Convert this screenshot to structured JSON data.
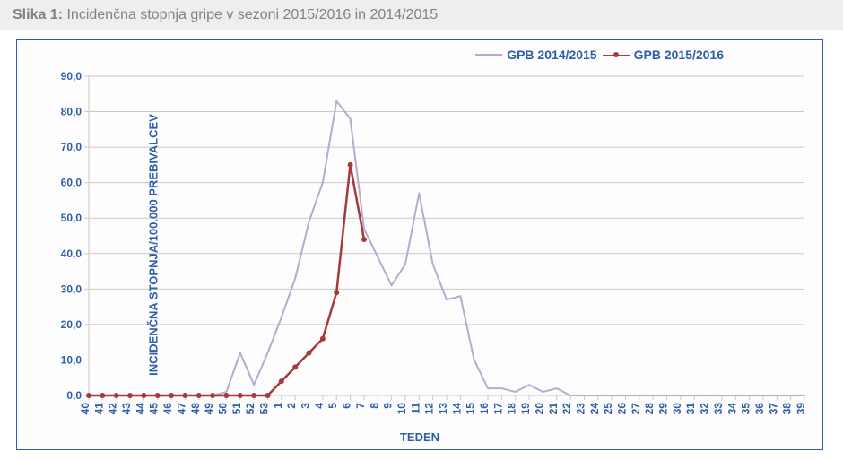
{
  "title_prefix": "Slika 1: ",
  "title_rest": "Incidenčna stopnja gripe v sezoni 2015/2016 in 2014/2015",
  "chart": {
    "type": "line",
    "background_color": "#fdfdfd",
    "border_color": "#2d5ea9",
    "grid_color": "#c8c8c8",
    "text_color": "#2d5ea9",
    "ylabel": "INCIDENČNA STOPNJA/100.000 PREBIVALCEV",
    "xlabel": "TEDEN",
    "label_fontsize": 13,
    "tick_fontsize": 12,
    "ylim": [
      0,
      90
    ],
    "ytick_step": 10,
    "categories": [
      "40",
      "41",
      "42",
      "43",
      "44",
      "45",
      "46",
      "47",
      "48",
      "49",
      "50",
      "51",
      "52",
      "53",
      "1",
      "2",
      "3",
      "4",
      "5",
      "6",
      "7",
      "8",
      "9",
      "10",
      "11",
      "12",
      "13",
      "14",
      "15",
      "16",
      "17",
      "18",
      "19",
      "20",
      "21",
      "22",
      "23",
      "24",
      "25",
      "26",
      "27",
      "28",
      "29",
      "30",
      "31",
      "32",
      "33",
      "34",
      "35",
      "36",
      "37",
      "38",
      "39"
    ],
    "legend": {
      "position": "top-right"
    },
    "series": [
      {
        "name": "GPB 2014/2015",
        "color": "#b9a9cf",
        "line_width": 2,
        "marker": "none",
        "values": [
          0,
          0,
          0,
          0,
          0,
          0,
          0,
          0,
          0,
          0,
          1,
          12,
          3,
          12,
          22,
          33,
          49,
          60,
          83,
          78,
          47,
          39,
          31,
          37,
          57,
          37,
          27,
          28,
          10,
          2,
          2,
          1,
          3,
          1,
          2,
          0,
          0,
          0,
          0,
          0,
          0,
          0,
          0,
          0,
          0,
          0,
          0,
          0,
          0,
          0,
          0,
          0,
          0
        ]
      },
      {
        "name": "GPB 2015/2016",
        "color": "#a43b3a",
        "line_width": 2.5,
        "marker": "circle",
        "marker_size": 6,
        "values": [
          0,
          0,
          0,
          0,
          0,
          0,
          0,
          0,
          0,
          0,
          0,
          0,
          0,
          0,
          4,
          8,
          12,
          16,
          29,
          65,
          44
        ]
      }
    ]
  }
}
